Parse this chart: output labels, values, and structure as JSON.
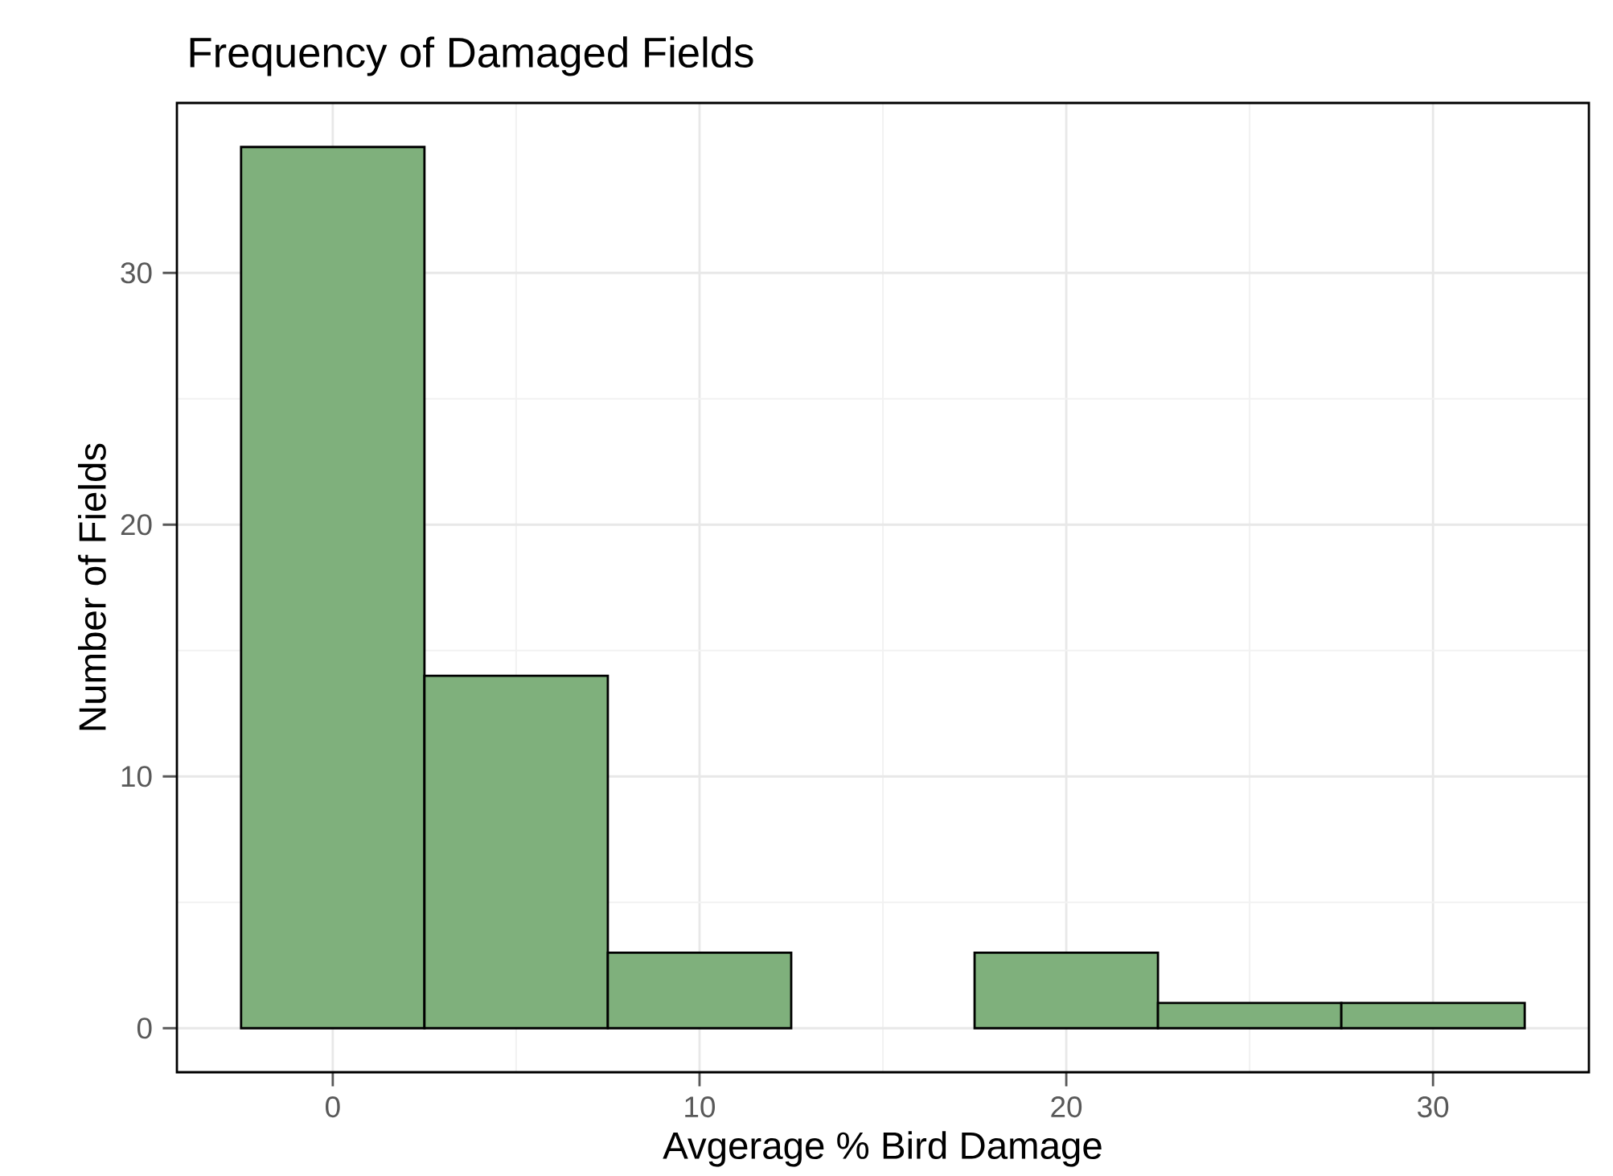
{
  "chart_data": {
    "type": "histogram",
    "title": "Frequency of Damaged Fields",
    "xlabel": "Avgerage % Bird Damage",
    "ylabel": "Number of Fields",
    "bins": [
      -2.5,
      2.5,
      7.5,
      12.5,
      17.5,
      22.5,
      27.5,
      32.5
    ],
    "values": [
      35,
      14,
      3,
      0,
      3,
      1,
      1
    ],
    "color": "#7fb07c",
    "xlim": [
      -4.25,
      34.25
    ],
    "ylim": [
      -1.75,
      36.75
    ],
    "xticks": [
      0,
      10,
      20,
      30
    ],
    "yticks": [
      0,
      10,
      20,
      30
    ],
    "grid": true
  }
}
